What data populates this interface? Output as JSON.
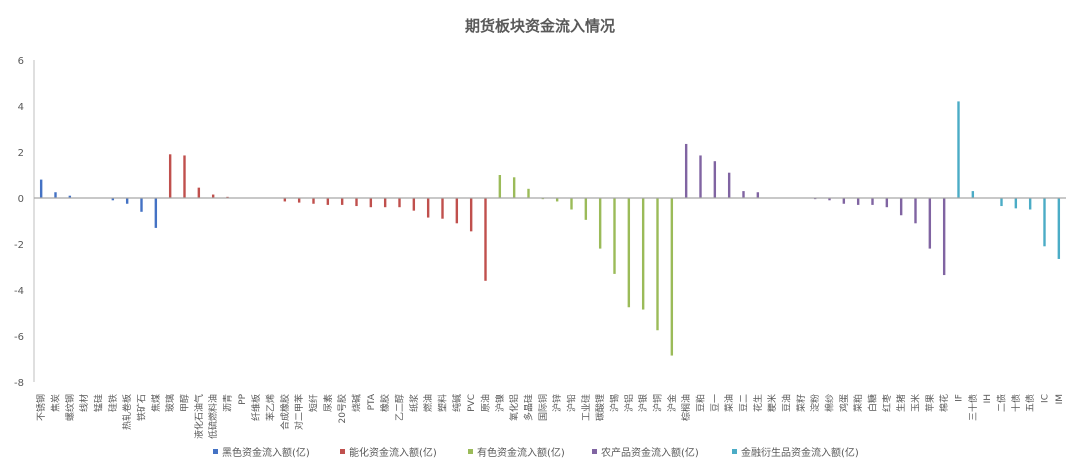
{
  "chart_data": {
    "type": "bar",
    "title": "期货板块资金流入情况",
    "xlabel": "",
    "ylabel": "",
    "ylim": [
      -8,
      6
    ],
    "yticks": [
      6,
      4,
      2,
      0,
      -2,
      -4,
      -6,
      -8
    ],
    "grid": false,
    "legend_position": "bottom",
    "series": [
      {
        "name": "黑色资金流入额(亿)",
        "color": "#4472C4",
        "categories": [
          "不锈钢",
          "焦炭",
          "螺纹钢",
          "线材",
          "锰硅",
          "硅铁",
          "热轧卷板",
          "铁矿石",
          "焦煤"
        ],
        "values": [
          0.8,
          0.25,
          0.1,
          0,
          0,
          -0.1,
          -0.25,
          -0.6,
          -1.3
        ]
      },
      {
        "name": "能化资金流入额(亿)",
        "color": "#C0504D",
        "categories": [
          "玻璃",
          "甲醇",
          "液化石油气",
          "低硫燃料油",
          "沥青",
          "PP",
          "纤维板",
          "苯乙烯",
          "合成橡胶",
          "对二甲苯",
          "短纤",
          "尿素",
          "20号胶",
          "烧碱",
          "PTA",
          "橡胶",
          "乙二醇",
          "纸浆",
          "燃油",
          "塑料",
          "纯碱",
          "PVC",
          "原油"
        ],
        "values": [
          1.9,
          1.85,
          0.45,
          0.15,
          0.05,
          0.02,
          0,
          -0.02,
          -0.15,
          -0.2,
          -0.25,
          -0.3,
          -0.3,
          -0.35,
          -0.4,
          -0.4,
          -0.4,
          -0.55,
          -0.85,
          -0.9,
          -1.1,
          -1.45,
          -3.6
        ]
      },
      {
        "name": "有色资金流入额(亿)",
        "color": "#9BBB59",
        "categories": [
          "沪镍",
          "氧化铝",
          "多晶硅",
          "国际铜",
          "沪锌",
          "沪铅",
          "工业硅",
          "碳酸锂",
          "沪锡",
          "沪铝",
          "沪银",
          "沪铜",
          "沪金"
        ],
        "values": [
          1.0,
          0.9,
          0.4,
          -0.05,
          -0.15,
          -0.5,
          -0.95,
          -2.2,
          -3.3,
          -4.75,
          -4.85,
          -5.75,
          -6.85
        ]
      },
      {
        "name": "农产品资金流入额(亿)",
        "color": "#8064A2",
        "categories": [
          "棕榈油",
          "豆粕",
          "豆一",
          "菜油",
          "豆二",
          "花生",
          "粳米",
          "豆油",
          "菜籽",
          "淀粉",
          "棉纱",
          "鸡蛋",
          "菜粕",
          "白糖",
          "红枣",
          "生猪",
          "玉米",
          "苹果",
          "棉花"
        ],
        "values": [
          2.35,
          1.85,
          1.6,
          1.1,
          0.3,
          0.25,
          0,
          0,
          0,
          -0.05,
          -0.1,
          -0.25,
          -0.3,
          -0.3,
          -0.4,
          -0.75,
          -1.1,
          -2.2,
          -3.35
        ]
      },
      {
        "name": "金融衍生品资金流入额(亿)",
        "color": "#4BACC6",
        "categories": [
          "IF",
          "三十债",
          "IH",
          "二债",
          "十债",
          "五债",
          "IC",
          "IM"
        ],
        "values": [
          4.2,
          0.3,
          0,
          -0.35,
          -0.45,
          -0.5,
          -2.1,
          -2.65
        ]
      }
    ]
  }
}
